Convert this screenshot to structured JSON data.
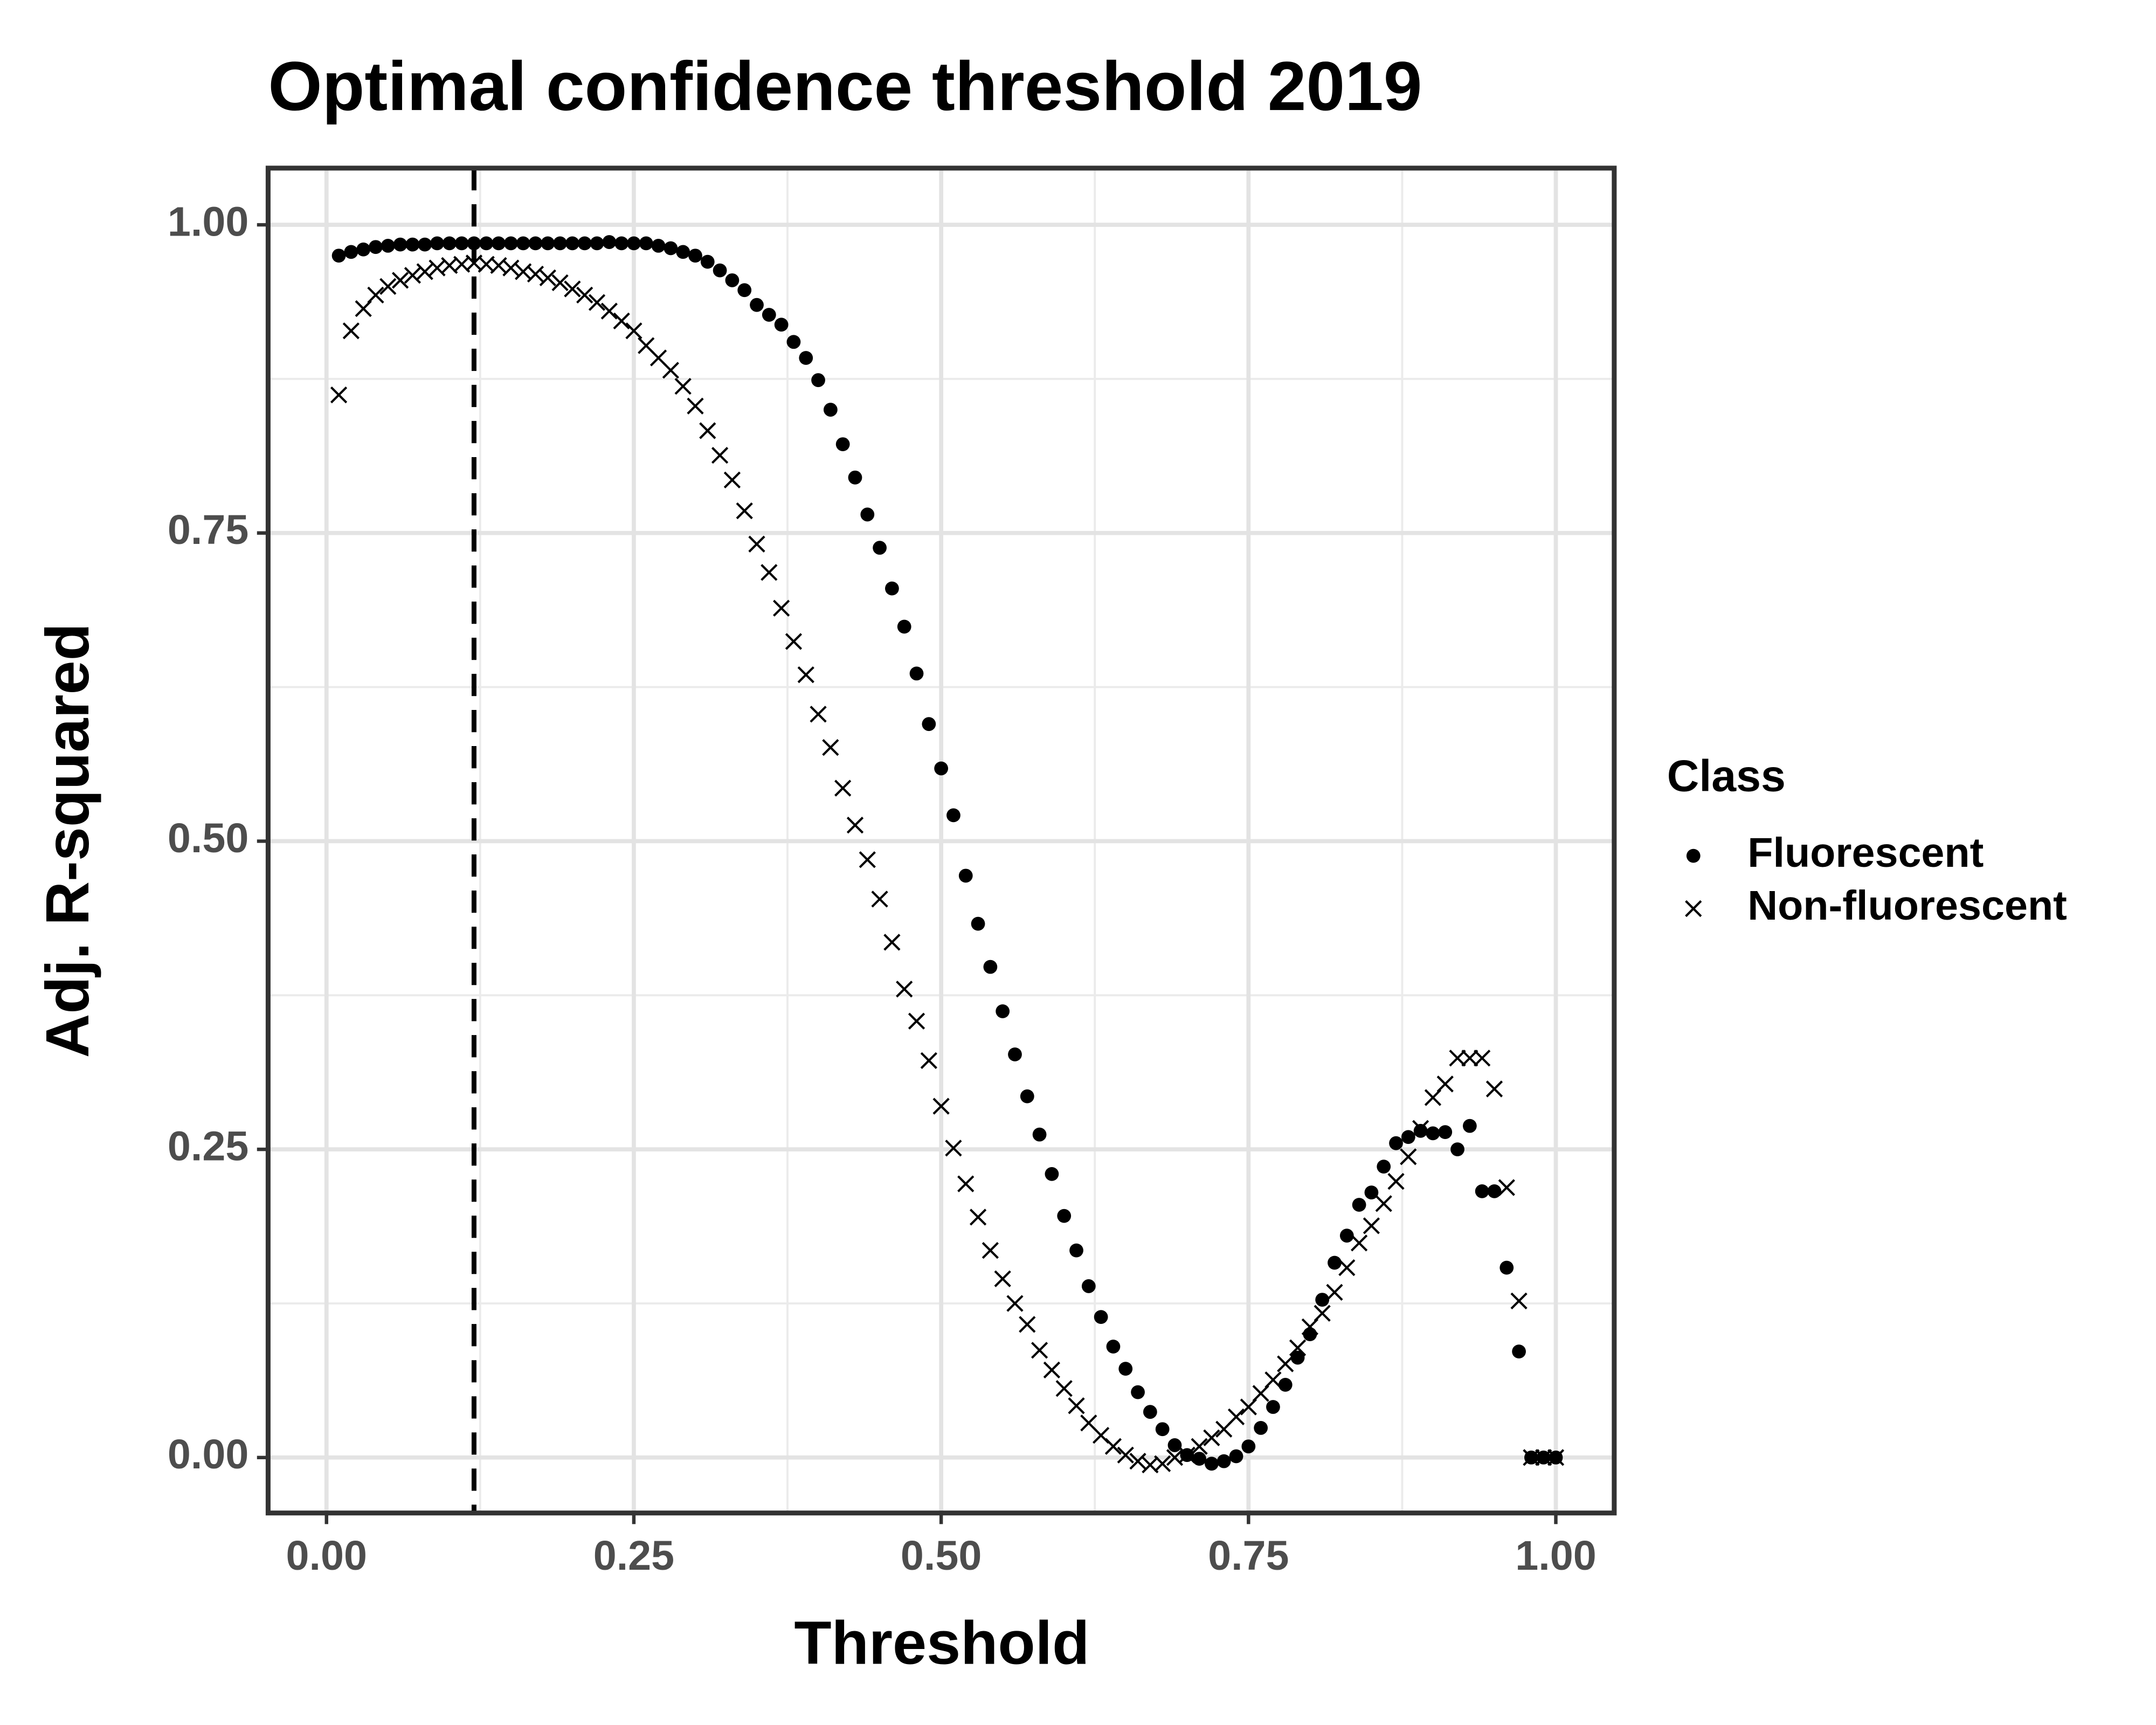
{
  "chart_data": {
    "type": "scatter",
    "title": "Optimal confidence threshold 2019",
    "x_label": "Threshold",
    "y_label": "Adj. R-squared",
    "legend_title": "Class",
    "legend_position": "right",
    "grid": true,
    "minor_grid": true,
    "xlim": [
      -0.0475,
      1.0475
    ],
    "ylim": [
      -0.045,
      1.046
    ],
    "xticks": [
      {
        "value": 0,
        "label": "0.00"
      },
      {
        "value": 0.25,
        "label": "0.25"
      },
      {
        "value": 0.5,
        "label": "0.50"
      },
      {
        "value": 0.75,
        "label": "0.75"
      },
      {
        "value": 1,
        "label": "1.00"
      }
    ],
    "yticks": [
      {
        "value": 0,
        "label": "0.00"
      },
      {
        "value": 0.25,
        "label": "0.25"
      },
      {
        "value": 0.5,
        "label": "0.50"
      },
      {
        "value": 0.75,
        "label": "0.75"
      },
      {
        "value": 1,
        "label": "1.00"
      }
    ],
    "vline": 0.12,
    "x": [
      0.01,
      0.02,
      0.03,
      0.04,
      0.05,
      0.06,
      0.07,
      0.08,
      0.09,
      0.1,
      0.11,
      0.12,
      0.13,
      0.14,
      0.15,
      0.16,
      0.17,
      0.18,
      0.19,
      0.2,
      0.21,
      0.22,
      0.23,
      0.24,
      0.25,
      0.26,
      0.27,
      0.28,
      0.29,
      0.3,
      0.31,
      0.32,
      0.33,
      0.34,
      0.35,
      0.36,
      0.37,
      0.38,
      0.39,
      0.4,
      0.41,
      0.42,
      0.43,
      0.44,
      0.45,
      0.46,
      0.47,
      0.48,
      0.49,
      0.5,
      0.51,
      0.52,
      0.53,
      0.54,
      0.55,
      0.56,
      0.57,
      0.58,
      0.59,
      0.6,
      0.61,
      0.62,
      0.63,
      0.64,
      0.65,
      0.66,
      0.67,
      0.68,
      0.69,
      0.7,
      0.71,
      0.72,
      0.73,
      0.74,
      0.75,
      0.76,
      0.77,
      0.78,
      0.79,
      0.8,
      0.81,
      0.82,
      0.83,
      0.84,
      0.85,
      0.86,
      0.87,
      0.88,
      0.89,
      0.9,
      0.91,
      0.92,
      0.93,
      0.94,
      0.95,
      0.96,
      0.97,
      0.98,
      0.99,
      1.0
    ],
    "series": [
      {
        "name": "Fluorescent",
        "marker": "circle",
        "color": "#000000",
        "values": [
          0.975,
          0.978,
          0.98,
          0.982,
          0.983,
          0.984,
          0.984,
          0.984,
          0.985,
          0.985,
          0.985,
          0.985,
          0.985,
          0.985,
          0.985,
          0.985,
          0.985,
          0.985,
          0.985,
          0.985,
          0.985,
          0.985,
          0.986,
          0.985,
          0.985,
          0.985,
          0.983,
          0.981,
          0.978,
          0.975,
          0.97,
          0.963,
          0.955,
          0.947,
          0.935,
          0.927,
          0.919,
          0.905,
          0.892,
          0.874,
          0.85,
          0.822,
          0.795,
          0.765,
          0.738,
          0.705,
          0.674,
          0.636,
          0.595,
          0.559,
          0.521,
          0.472,
          0.433,
          0.398,
          0.362,
          0.327,
          0.293,
          0.262,
          0.23,
          0.196,
          0.168,
          0.139,
          0.114,
          0.09,
          0.072,
          0.053,
          0.037,
          0.023,
          0.01,
          0.002,
          -0.001,
          -0.005,
          -0.003,
          0.001,
          0.009,
          0.024,
          0.041,
          0.059,
          0.081,
          0.1,
          0.128,
          0.158,
          0.18,
          0.205,
          0.215,
          0.236,
          0.255,
          0.26,
          0.265,
          0.263,
          0.264,
          0.25,
          0.269,
          0.216,
          0.216,
          0.154,
          0.086,
          0,
          0,
          0
        ]
      },
      {
        "name": "Non-fluorescent",
        "marker": "cross",
        "color": "#000000",
        "values": [
          0.862,
          0.914,
          0.932,
          0.943,
          0.95,
          0.955,
          0.959,
          0.962,
          0.965,
          0.967,
          0.968,
          0.969,
          0.968,
          0.967,
          0.965,
          0.962,
          0.96,
          0.957,
          0.953,
          0.948,
          0.943,
          0.937,
          0.93,
          0.922,
          0.914,
          0.902,
          0.892,
          0.882,
          0.869,
          0.853,
          0.833,
          0.813,
          0.793,
          0.768,
          0.741,
          0.718,
          0.689,
          0.662,
          0.635,
          0.603,
          0.576,
          0.543,
          0.513,
          0.485,
          0.453,
          0.418,
          0.38,
          0.354,
          0.322,
          0.285,
          0.251,
          0.222,
          0.195,
          0.168,
          0.145,
          0.125,
          0.108,
          0.087,
          0.071,
          0.056,
          0.042,
          0.028,
          0.018,
          0.009,
          0.002,
          -0.003,
          -0.006,
          -0.005,
          0.0,
          0.002,
          0.009,
          0.016,
          0.023,
          0.033,
          0.041,
          0.052,
          0.063,
          0.076,
          0.089,
          0.106,
          0.117,
          0.134,
          0.154,
          0.174,
          0.188,
          0.206,
          0.224,
          0.244,
          0.267,
          0.292,
          0.303,
          0.324,
          0.324,
          0.324,
          0.299,
          0.219,
          0.127,
          0,
          0,
          0
        ]
      }
    ]
  }
}
